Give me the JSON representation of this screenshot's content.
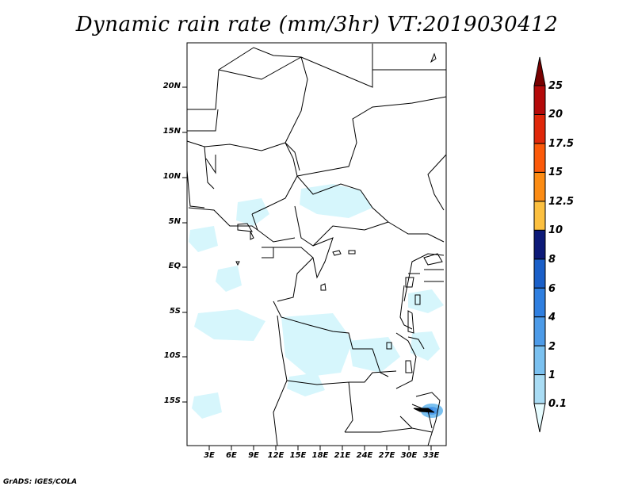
{
  "title": "Dynamic rain rate (mm/3hr) VT:2019030412",
  "lat_labels": [
    "20N",
    "15N",
    "10N",
    "5N",
    "EQ",
    "5S",
    "10S",
    "15S"
  ],
  "lon_labels": [
    "3E",
    "6E",
    "9E",
    "12E",
    "15E",
    "18E",
    "21E",
    "24E",
    "27E",
    "30E",
    "33E"
  ],
  "colorbar": {
    "labels": [
      "0.1",
      "1",
      "2",
      "4",
      "6",
      "8",
      "10",
      "12.5",
      "15",
      "17.5",
      "20",
      "25"
    ],
    "colors": [
      "#e6fcff",
      "#a9dcf4",
      "#7bc1f0",
      "#4d9be8",
      "#2f7fe0",
      "#1a5fc8",
      "#0d1a78",
      "#fcc040",
      "#fc8c14",
      "#fc5a0a",
      "#e0280a",
      "#b40a0a",
      "#780000"
    ]
  },
  "credit": "GrADS: IGES/COLA"
}
